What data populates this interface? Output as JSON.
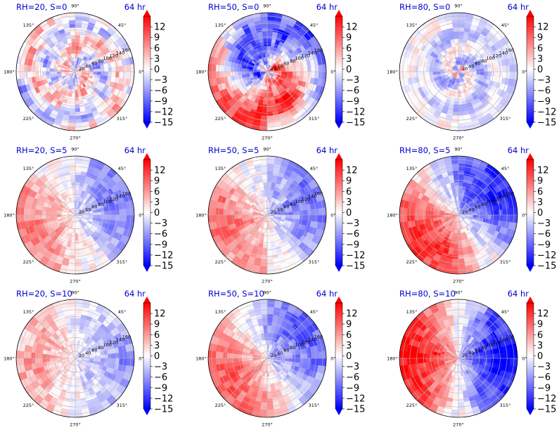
{
  "chart_data": {
    "type": "heatmap",
    "projection": "polar",
    "grid": true,
    "colormap": "bwr",
    "colors": {
      "min": "#0000ff",
      "mid": "#ffffff",
      "max": "#ff0000",
      "title": "#0000cc"
    },
    "vmin": -15,
    "vmax": 15,
    "colorbar_ticks": [
      "12",
      "9",
      "6",
      "3",
      "0",
      "−3",
      "−6",
      "−9",
      "−12",
      "−15"
    ],
    "angle_labels": [
      "0°",
      "45°",
      "90°",
      "135°",
      "180°",
      "225°",
      "270°",
      "315°"
    ],
    "radial_ticks": [
      "20",
      "40",
      "60",
      "80",
      "100",
      "120",
      "140",
      "160"
    ],
    "rlim": [
      0,
      170
    ],
    "time_label": "64 hr",
    "panels": [
      {
        "title": "RH=20, S=0",
        "pattern": "patchy",
        "amplitude": 0.45
      },
      {
        "title": "RH=50, S=0",
        "pattern": "ring",
        "amplitude": 0.7
      },
      {
        "title": "RH=80, S=0",
        "pattern": "spiral_blue",
        "amplitude": 0.45
      },
      {
        "title": "RH=20, S=5",
        "pattern": "dipole",
        "amplitude": 0.5,
        "phase_deg": 200
      },
      {
        "title": "RH=50, S=5",
        "pattern": "dipole",
        "amplitude": 0.55,
        "phase_deg": 200
      },
      {
        "title": "RH=80, S=5",
        "pattern": "dipole",
        "amplitude": 0.85,
        "phase_deg": 215
      },
      {
        "title": "RH=20, S=10",
        "pattern": "dipole",
        "amplitude": 0.35,
        "phase_deg": 180
      },
      {
        "title": "RH=50, S=10",
        "pattern": "dipole",
        "amplitude": 0.65,
        "phase_deg": 210
      },
      {
        "title": "RH=80, S=10",
        "pattern": "dipole",
        "amplitude": 0.95,
        "phase_deg": 180
      }
    ]
  }
}
